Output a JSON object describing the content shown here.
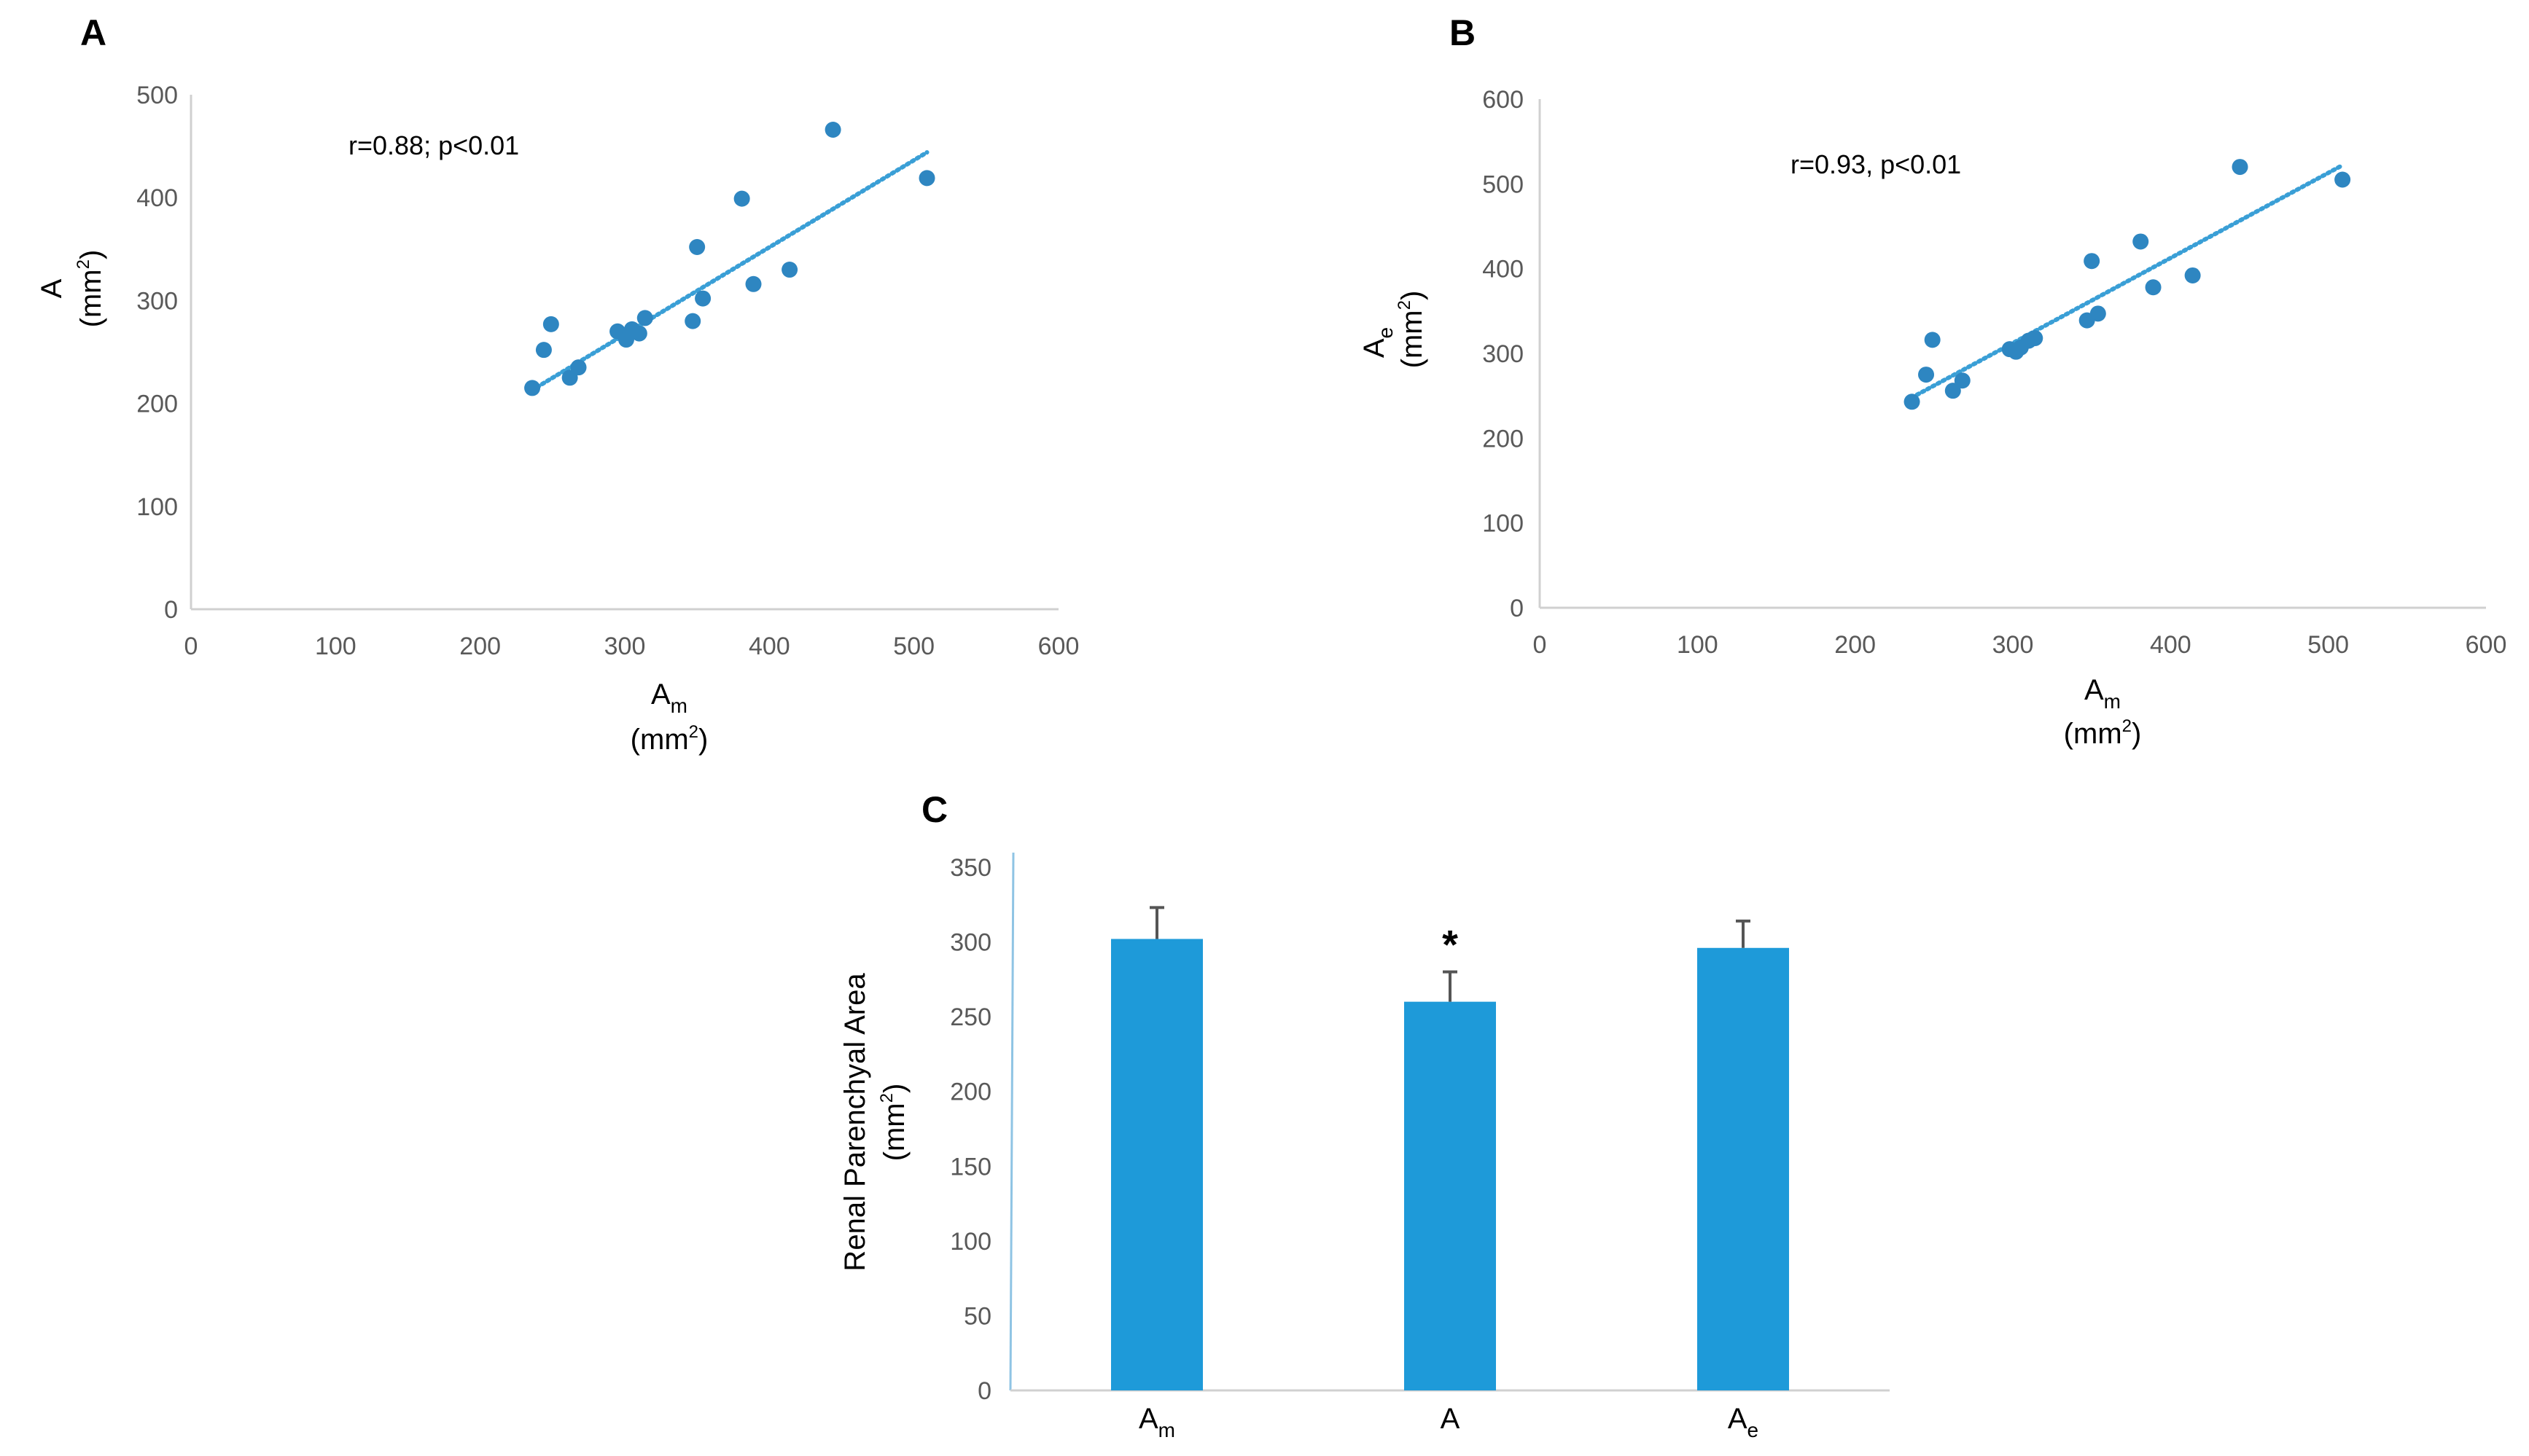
{
  "colors": {
    "point": "#2e86c1",
    "trendline": "#3a9fd6",
    "bar": "#1e9ad9",
    "error_bar": "#555555",
    "axis": "#d0d0d0",
    "tick_text": "#595959"
  },
  "chart_data": [
    {
      "panel": "A",
      "type": "scatter",
      "x": [
        236,
        244,
        249,
        262,
        268,
        295,
        301,
        305,
        310,
        314,
        347,
        350,
        354,
        381,
        389,
        414,
        444,
        509
      ],
      "y": [
        215,
        252,
        277,
        225,
        235,
        270,
        262,
        272,
        268,
        283,
        280,
        352,
        302,
        399,
        316,
        330,
        466,
        419
      ],
      "trendline": {
        "x": [
          236,
          509
        ],
        "y": [
          213,
          444
        ],
        "style": "dotted"
      },
      "annotation": "r=0.88; p<0.01",
      "xlabel": {
        "main": "A",
        "sub": "m",
        "unit_pre": "(mm",
        "unit_sup": "2",
        "unit_post": ")"
      },
      "ylabel": {
        "main": "A",
        "sub": "",
        "unit_pre": "(mm",
        "unit_sup": "2",
        "unit_post": ")"
      },
      "xlim": [
        0,
        600
      ],
      "ylim": [
        0,
        500
      ],
      "xticks": [
        "0",
        "100",
        "200",
        "300",
        "400",
        "500",
        "600"
      ],
      "yticks": [
        "0",
        "100",
        "200",
        "300",
        "400",
        "500"
      ],
      "grid": false
    },
    {
      "panel": "B",
      "type": "scatter",
      "x": [
        236,
        245,
        249,
        262,
        268,
        298,
        302,
        305,
        310,
        314,
        347,
        350,
        354,
        381,
        389,
        414,
        444,
        509
      ],
      "y": [
        243,
        275,
        316,
        256,
        268,
        305,
        302,
        307,
        315,
        318,
        339,
        409,
        347,
        432,
        378,
        392,
        520,
        505
      ],
      "trendline": {
        "x": [
          236,
          509
        ],
        "y": [
          248,
          522
        ],
        "style": "dotted"
      },
      "annotation": "r=0.93, p<0.01",
      "xlabel": {
        "main": "A",
        "sub": "m",
        "unit_pre": "(mm",
        "unit_sup": "2",
        "unit_post": ")"
      },
      "ylabel": {
        "main": "A",
        "sub": "e",
        "unit_pre": "(mm",
        "unit_sup": "2",
        "unit_post": ")"
      },
      "xlim": [
        0,
        600
      ],
      "ylim": [
        0,
        600
      ],
      "xticks": [
        "0",
        "100",
        "200",
        "300",
        "400",
        "500",
        "600"
      ],
      "yticks": [
        "0",
        "100",
        "200",
        "300",
        "400",
        "500",
        "600"
      ],
      "grid": false
    },
    {
      "panel": "C",
      "type": "bar",
      "categories": [
        {
          "main": "A",
          "sub": "m"
        },
        {
          "main": "A",
          "sub": ""
        },
        {
          "main": "A",
          "sub": "e"
        }
      ],
      "values": [
        302,
        260,
        296
      ],
      "error_plus": [
        21,
        20,
        18
      ],
      "markers": [
        "",
        "*",
        ""
      ],
      "ylabel": {
        "line1": "Renal Parenchyal Area",
        "unit_pre": "(mm",
        "unit_sup": "2",
        "unit_post": ")"
      },
      "ylim": [
        0,
        350
      ],
      "yticks": [
        "0",
        "50",
        "100",
        "150",
        "200",
        "250",
        "300",
        "350"
      ],
      "grid": false
    }
  ]
}
